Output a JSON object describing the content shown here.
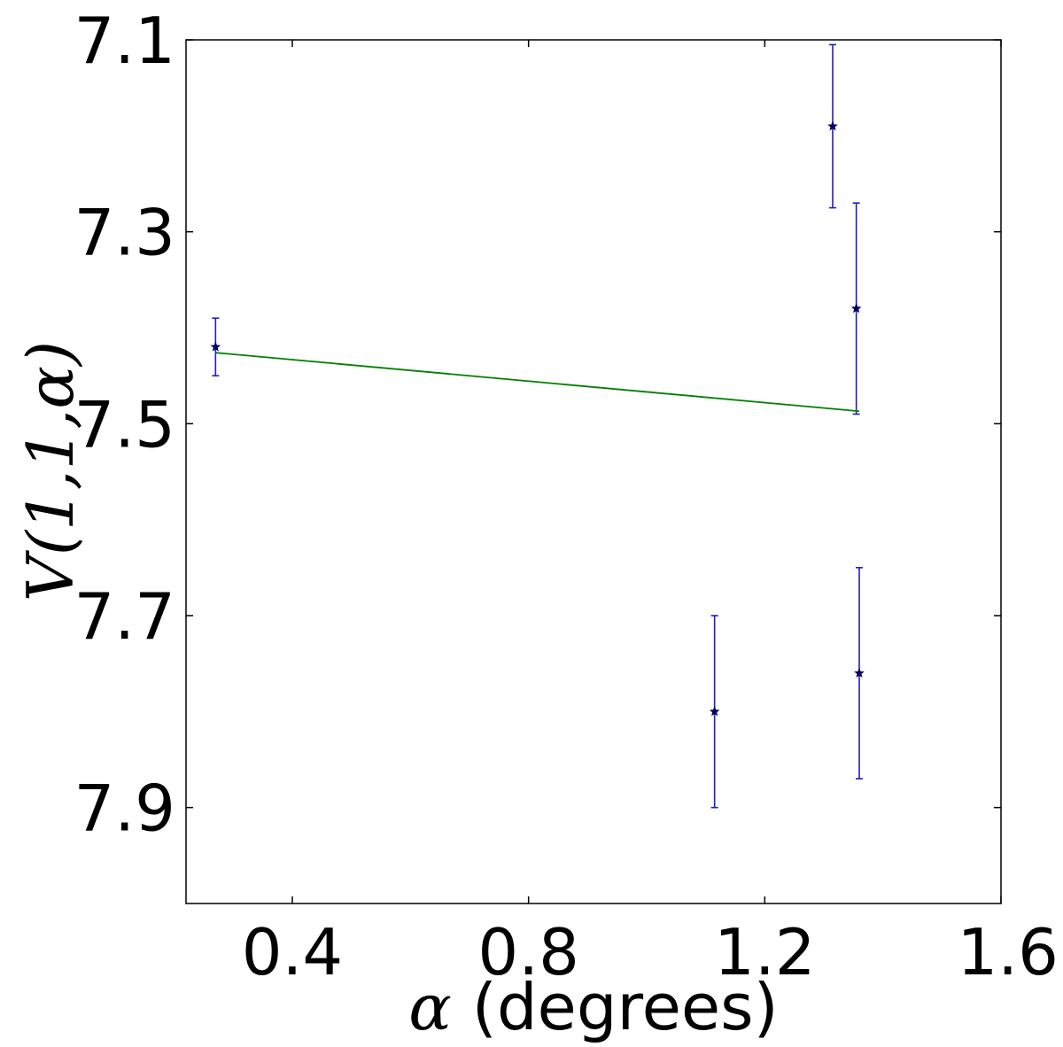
{
  "chart_data": {
    "type": "scatter",
    "xlabel_symbol": "α",
    "xlabel_text": "(degrees)",
    "ylabel": "V(1,1,α)",
    "xlim": [
      0.22,
      1.6
    ],
    "ylim": [
      8.0,
      7.1
    ],
    "y_inverted": true,
    "xticks": [
      0.4,
      0.8,
      1.2,
      1.6
    ],
    "xtick_labels": [
      "0.4",
      "0.8",
      "1.2",
      "1.6"
    ],
    "yticks": [
      7.1,
      7.3,
      7.5,
      7.7,
      7.9
    ],
    "ytick_labels": [
      "7.1",
      "7.3",
      "7.5",
      "7.7",
      "7.9"
    ],
    "grid": false,
    "series": [
      {
        "kind": "errorbar",
        "marker": "star",
        "color": "#1f1fbf",
        "marker_color": "#000060",
        "points": [
          {
            "x": 0.27,
            "y": 7.42,
            "yerr": 0.03
          },
          {
            "x": 1.115,
            "y": 7.8,
            "yerr": 0.1
          },
          {
            "x": 1.315,
            "y": 7.19,
            "yerr": 0.085
          },
          {
            "x": 1.355,
            "y": 7.38,
            "yerr": 0.11
          },
          {
            "x": 1.36,
            "y": 7.76,
            "yerr": 0.11
          }
        ]
      },
      {
        "kind": "line",
        "color": "#008000",
        "points": [
          {
            "x": 0.27,
            "y": 7.426
          },
          {
            "x": 1.36,
            "y": 7.487
          }
        ]
      }
    ]
  }
}
